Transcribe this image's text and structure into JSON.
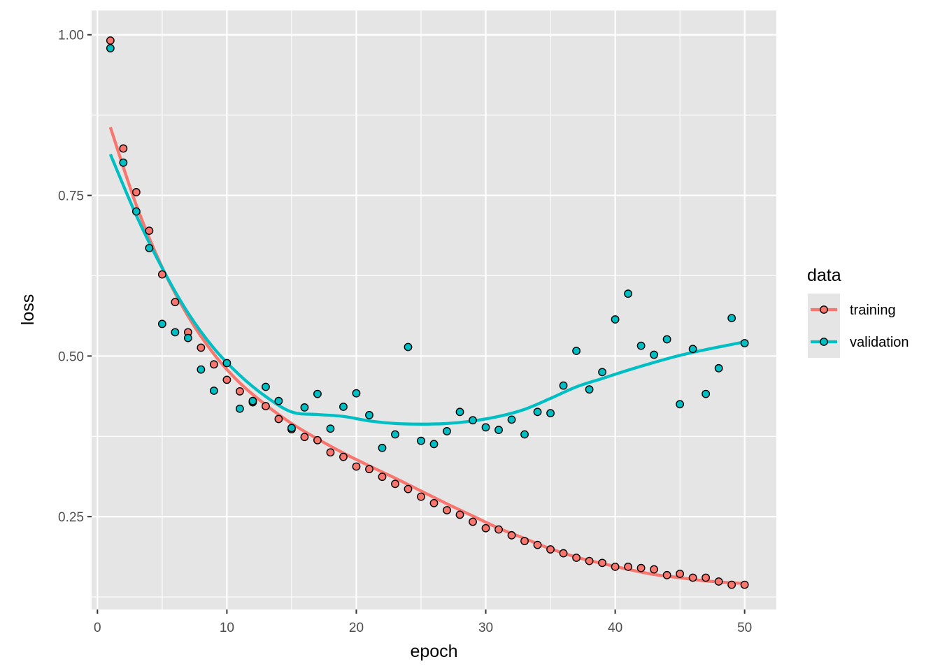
{
  "chart_data": {
    "type": "scatter",
    "xlabel": "epoch",
    "ylabel": "loss",
    "xlim": [
      -0.45,
      52.45
    ],
    "ylim": [
      0.1055,
      1.0378
    ],
    "x_ticks": [
      0,
      10,
      20,
      30,
      40,
      50
    ],
    "x_tick_labels": [
      "0",
      "10",
      "20",
      "30",
      "40",
      "50"
    ],
    "y_ticks": [
      0.25,
      0.5,
      0.75,
      1.0
    ],
    "y_tick_labels": [
      "0.25",
      "0.50",
      "0.75",
      "1.00"
    ],
    "grid": true,
    "panel_background": "#e5e5e5",
    "legend": {
      "title": "data",
      "position": "right",
      "entries": [
        "training",
        "validation"
      ]
    },
    "x": [
      1,
      2,
      3,
      4,
      5,
      6,
      7,
      8,
      9,
      10,
      11,
      12,
      13,
      14,
      15,
      16,
      17,
      18,
      19,
      20,
      21,
      22,
      23,
      24,
      25,
      26,
      27,
      28,
      29,
      30,
      31,
      32,
      33,
      34,
      35,
      36,
      37,
      38,
      39,
      40,
      41,
      42,
      43,
      44,
      45,
      46,
      47,
      48,
      49,
      50
    ],
    "series": [
      {
        "name": "training",
        "color": "#f8766d",
        "values": [
          0.991,
          0.823,
          0.755,
          0.695,
          0.627,
          0.584,
          0.537,
          0.513,
          0.487,
          0.463,
          0.445,
          0.428,
          0.422,
          0.402,
          0.386,
          0.374,
          0.369,
          0.35,
          0.343,
          0.328,
          0.324,
          0.312,
          0.301,
          0.293,
          0.281,
          0.271,
          0.26,
          0.253,
          0.242,
          0.232,
          0.23,
          0.221,
          0.212,
          0.206,
          0.199,
          0.193,
          0.186,
          0.181,
          0.178,
          0.172,
          0.172,
          0.17,
          0.168,
          0.159,
          0.161,
          0.155,
          0.155,
          0.149,
          0.144,
          0.144
        ],
        "smooth": [
          [
            1,
            0.856
          ],
          [
            3,
            0.735
          ],
          [
            5,
            0.638
          ],
          [
            7,
            0.562
          ],
          [
            9,
            0.503
          ],
          [
            11,
            0.458
          ],
          [
            13,
            0.424
          ],
          [
            15,
            0.395
          ],
          [
            17,
            0.371
          ],
          [
            19,
            0.349
          ],
          [
            21,
            0.329
          ],
          [
            23,
            0.31
          ],
          [
            25,
            0.29
          ],
          [
            27,
            0.27
          ],
          [
            29,
            0.251
          ],
          [
            31,
            0.232
          ],
          [
            33,
            0.216
          ],
          [
            35,
            0.2
          ],
          [
            37,
            0.187
          ],
          [
            39,
            0.177
          ],
          [
            41,
            0.168
          ],
          [
            43,
            0.16
          ],
          [
            45,
            0.155
          ],
          [
            47,
            0.15
          ],
          [
            49,
            0.147
          ],
          [
            50,
            0.146
          ]
        ]
      },
      {
        "name": "validation",
        "color": "#00bfc4",
        "values": [
          0.979,
          0.801,
          0.725,
          0.668,
          0.55,
          0.537,
          0.528,
          0.479,
          0.446,
          0.489,
          0.418,
          0.43,
          0.452,
          0.43,
          0.388,
          0.42,
          0.441,
          0.387,
          0.421,
          0.442,
          0.408,
          0.357,
          0.378,
          0.514,
          0.368,
          0.363,
          0.383,
          0.413,
          0.4,
          0.389,
          0.385,
          0.401,
          0.378,
          0.413,
          0.411,
          0.454,
          0.508,
          0.448,
          0.475,
          0.557,
          0.597,
          0.516,
          0.502,
          0.526,
          0.425,
          0.511,
          0.441,
          0.481,
          0.559,
          0.52
        ],
        "smooth": [
          [
            1,
            0.814
          ],
          [
            3,
            0.719
          ],
          [
            5,
            0.637
          ],
          [
            7,
            0.567
          ],
          [
            9,
            0.512
          ],
          [
            11,
            0.47
          ],
          [
            13,
            0.437
          ],
          [
            15,
            0.413
          ],
          [
            17,
            0.409
          ],
          [
            19,
            0.406
          ],
          [
            21,
            0.399
          ],
          [
            23,
            0.395
          ],
          [
            25,
            0.394
          ],
          [
            27,
            0.395
          ],
          [
            29,
            0.399
          ],
          [
            31,
            0.406
          ],
          [
            33,
            0.417
          ],
          [
            35,
            0.434
          ],
          [
            37,
            0.452
          ],
          [
            39,
            0.465
          ],
          [
            41,
            0.478
          ],
          [
            43,
            0.49
          ],
          [
            45,
            0.501
          ],
          [
            47,
            0.51
          ],
          [
            49,
            0.518
          ],
          [
            50,
            0.522
          ]
        ]
      }
    ]
  }
}
